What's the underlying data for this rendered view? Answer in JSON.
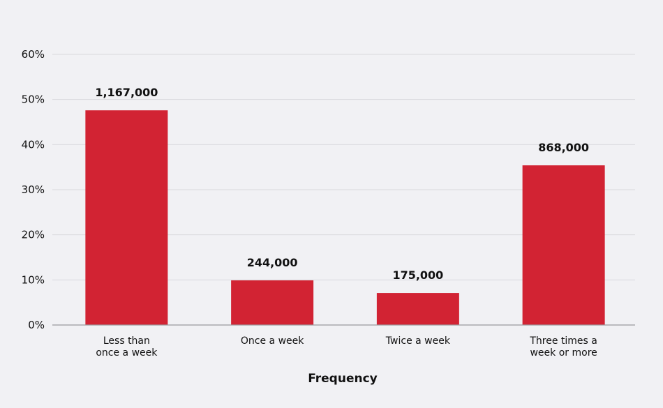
{
  "chart_data": {
    "type": "bar",
    "title": "",
    "xlabel": "Frequency",
    "ylabel": "",
    "ylim": [
      0,
      60
    ],
    "yticks": [
      "0%",
      "10%",
      "20%",
      "30%",
      "40%",
      "50%",
      "60%"
    ],
    "grid": true,
    "categories": [
      [
        "Less than",
        "once a week"
      ],
      [
        "Once a week"
      ],
      [
        "Twice a week"
      ],
      [
        "Three times a",
        "week or more"
      ]
    ],
    "values": [
      47.6,
      9.9,
      7.1,
      35.4
    ],
    "data_labels": [
      "1,167,000",
      "244,000",
      "175,000",
      "868,000"
    ],
    "bar_color": "#d22333",
    "background": "#f1f1f4"
  }
}
